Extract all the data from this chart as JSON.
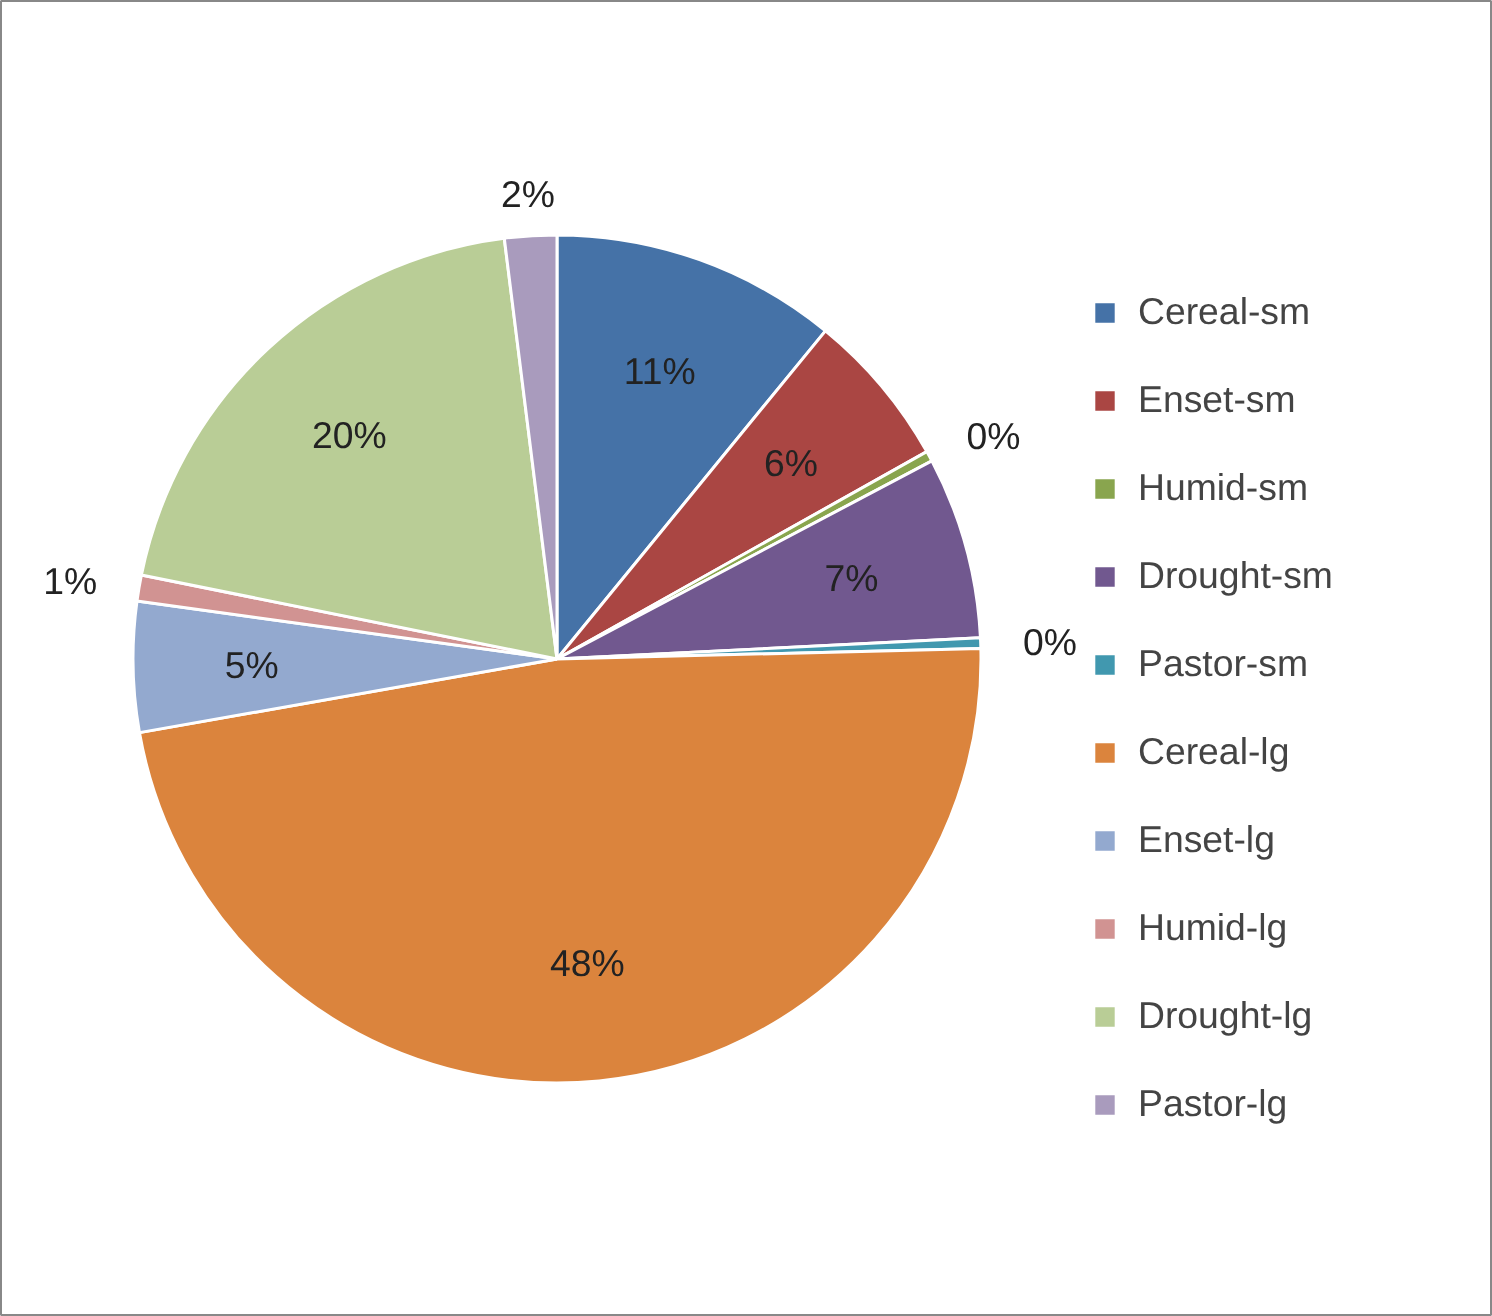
{
  "chart_data": {
    "type": "pie",
    "categories": [
      "Cereal-sm",
      "Enset-sm",
      "Humid-sm",
      "Drought-sm",
      "Pastor-sm",
      "Cereal-lg",
      "Enset-lg",
      "Humid-lg",
      "Drought-lg",
      "Pastor-lg"
    ],
    "values": [
      11,
      6,
      0.4,
      7,
      0.4,
      48,
      5,
      1,
      20,
      2
    ],
    "value_labels": [
      "11%",
      "6%",
      "0%",
      "7%",
      "0%",
      "48%",
      "5%",
      "1%",
      "20%",
      "2%"
    ],
    "colors": [
      "#4572a7",
      "#aa4643",
      "#89a54e",
      "#71588f",
      "#4198af",
      "#db843d",
      "#93a9cf",
      "#d19392",
      "#b9cd96",
      "#a99bbd"
    ],
    "legend": "right"
  }
}
